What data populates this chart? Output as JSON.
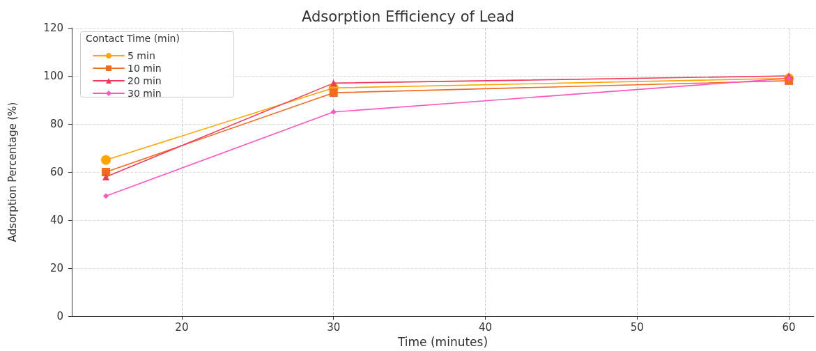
{
  "chart_data": {
    "type": "line",
    "title": "Adsorption Efficiency of Lead",
    "xlabel": "Time (minutes)",
    "ylabel": "Adsorption Percentage (%)",
    "legend_title": "Contact Time (min)",
    "x": [
      15,
      30,
      60
    ],
    "series": [
      {
        "name": "5 min",
        "color": "#ffa500",
        "marker": "circle",
        "values": [
          65,
          95,
          99
        ]
      },
      {
        "name": "10 min",
        "color": "#f26b21",
        "marker": "square",
        "values": [
          60,
          93,
          98
        ]
      },
      {
        "name": "20 min",
        "color": "#f03c5a",
        "marker": "triangle",
        "values": [
          58,
          97,
          100
        ]
      },
      {
        "name": "30 min",
        "color": "#ff55c0",
        "marker": "diamond",
        "values": [
          50,
          85,
          99
        ]
      }
    ],
    "xlim": [
      12.75,
      61.65
    ],
    "xticks": [
      20,
      30,
      40,
      50,
      60
    ],
    "ylim": [
      0,
      120
    ],
    "yticks": [
      0,
      20,
      40,
      60,
      80,
      100,
      120
    ],
    "grid": true,
    "legend": "top left",
    "line_style": "solid"
  }
}
